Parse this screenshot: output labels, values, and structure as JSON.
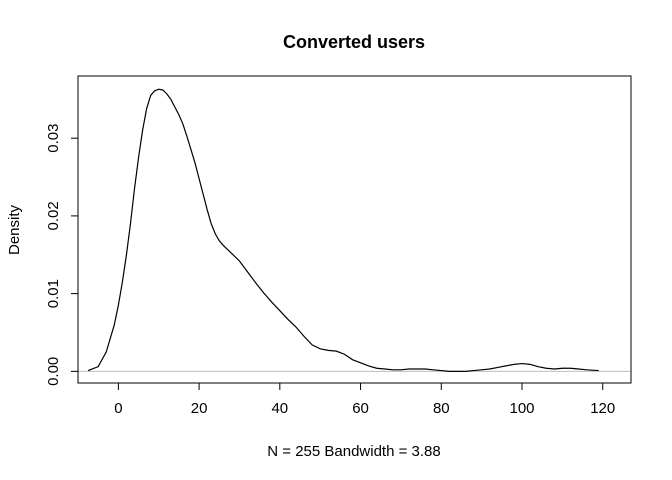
{
  "chart_data": {
    "type": "line",
    "title": "Converted users",
    "xlabel": "N = 255   Bandwidth = 3.88",
    "ylabel": "Density",
    "xlim": [
      -10,
      127
    ],
    "ylim": [
      -0.0015,
      0.038
    ],
    "x_ticks": [
      0,
      20,
      40,
      60,
      80,
      100,
      120
    ],
    "y_ticks": [
      0.0,
      0.01,
      0.02,
      0.03
    ],
    "y_tick_labels": [
      "0.00",
      "0.01",
      "0.02",
      "0.03"
    ],
    "grid": false,
    "baseline": {
      "y": 0,
      "color": "#bebebe"
    },
    "series": [
      {
        "color": "#000000",
        "x": [
          -7.5,
          -5,
          -3,
          -1,
          0,
          1,
          2,
          3,
          4,
          5,
          6,
          7,
          8,
          9,
          10,
          11,
          12,
          13,
          14,
          15,
          16,
          17,
          18,
          19,
          20,
          21,
          22,
          23,
          24,
          25,
          26,
          27,
          28,
          30,
          32,
          34,
          36,
          38,
          40,
          42,
          44,
          46,
          48,
          50,
          52,
          54,
          56,
          58,
          60,
          62,
          64,
          66,
          68,
          70,
          72,
          74,
          76,
          78,
          80,
          82,
          84,
          86,
          88,
          90,
          92,
          94,
          96,
          98,
          100,
          102,
          104,
          106,
          108,
          110,
          112,
          114,
          116,
          119
        ],
        "y": [
          0.0001,
          0.0006,
          0.0025,
          0.006,
          0.0085,
          0.0115,
          0.015,
          0.019,
          0.0235,
          0.0275,
          0.031,
          0.0338,
          0.0355,
          0.0361,
          0.0363,
          0.0362,
          0.0357,
          0.035,
          0.034,
          0.033,
          0.0318,
          0.0302,
          0.0285,
          0.0268,
          0.0248,
          0.0228,
          0.0208,
          0.019,
          0.0177,
          0.0168,
          0.0162,
          0.0157,
          0.0152,
          0.0142,
          0.0128,
          0.0114,
          0.0101,
          0.0089,
          0.0078,
          0.0067,
          0.0057,
          0.0045,
          0.0034,
          0.0029,
          0.0027,
          0.0026,
          0.0022,
          0.0015,
          0.0011,
          0.0007,
          0.0004,
          0.0003,
          0.0002,
          0.0002,
          0.0003,
          0.0003,
          0.0003,
          0.0002,
          0.0001,
          0.0,
          0.0,
          0.0,
          0.0001,
          0.0002,
          0.0003,
          0.0005,
          0.0007,
          0.0009,
          0.001,
          0.0009,
          0.0006,
          0.0004,
          0.0003,
          0.0004,
          0.0004,
          0.0003,
          0.0002,
          0.0001
        ]
      }
    ]
  }
}
